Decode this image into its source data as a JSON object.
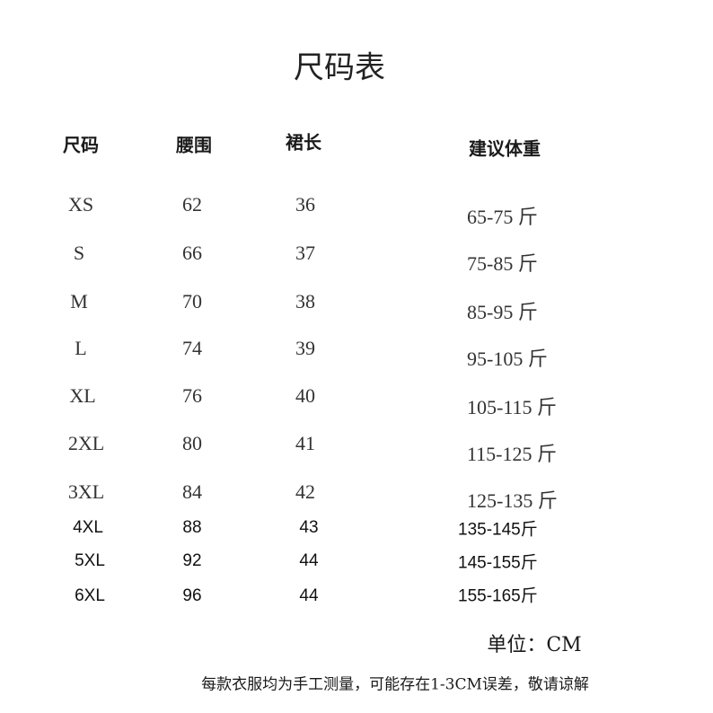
{
  "title": "尺码表",
  "headers": [
    "尺码",
    "腰围",
    "裙长",
    "建议体重"
  ],
  "rows": [
    {
      "size": "XS",
      "waist": "62",
      "length": "36",
      "weight": "65-75 斤"
    },
    {
      "size": "S",
      "waist": "66",
      "length": "37",
      "weight": "75-85 斤"
    },
    {
      "size": "M",
      "waist": "70",
      "length": "38",
      "weight": "85-95 斤"
    },
    {
      "size": "L",
      "waist": "74",
      "length": "39",
      "weight": "95-105 斤"
    },
    {
      "size": "XL",
      "waist": "76",
      "length": "40",
      "weight": "105-115 斤"
    },
    {
      "size": "2XL",
      "waist": "80",
      "length": "41",
      "weight": "115-125 斤"
    },
    {
      "size": "3XL",
      "waist": "84",
      "length": "42",
      "weight": "125-135 斤"
    },
    {
      "size": "4XL",
      "waist": "88",
      "length": "43",
      "weight": "135-145斤"
    },
    {
      "size": "5XL",
      "waist": "92",
      "length": "44",
      "weight": "145-155斤"
    },
    {
      "size": "6XL",
      "waist": "96",
      "length": "44",
      "weight": "155-165斤"
    }
  ],
  "unit": "单位：CM",
  "note": "每款衣服均为手工测量，可能存在1-3CM误差，敬请谅解"
}
